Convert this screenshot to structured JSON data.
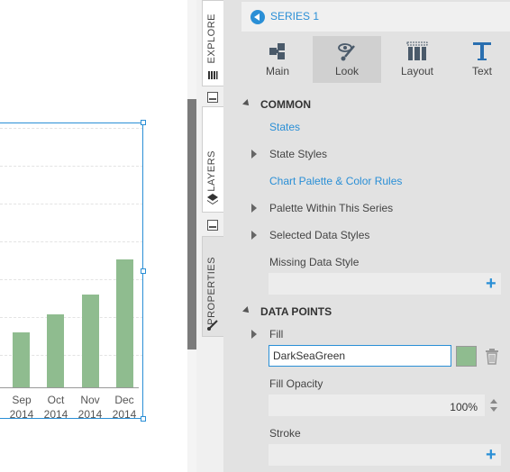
{
  "chart": {
    "bar_color": "#8FBC8F",
    "bars": [
      {
        "month": "Sep",
        "year": "2014"
      },
      {
        "month": "Oct",
        "year": "2014"
      },
      {
        "month": "Nov",
        "year": "2014"
      },
      {
        "month": "Dec",
        "year": "2014"
      }
    ]
  },
  "vertical_tabs": [
    {
      "label": "EXPLORE",
      "icon": "bar-chart-icon"
    },
    {
      "label": "LAYERS",
      "icon": "layers-icon"
    },
    {
      "label": "PROPERTIES",
      "icon": "brush-icon",
      "active": true
    }
  ],
  "panel": {
    "header": {
      "title": "SERIES 1"
    },
    "tabs": [
      {
        "label": "Main",
        "icon": "puzzle-icon"
      },
      {
        "label": "Look",
        "icon": "eye-brush-icon",
        "active": true
      },
      {
        "label": "Layout",
        "icon": "layout-icon"
      },
      {
        "label": "Text",
        "icon": "text-t-icon"
      }
    ],
    "common": {
      "title": "COMMON",
      "states": "States",
      "state_styles": "State Styles",
      "chart_palette": "Chart Palette & Color Rules",
      "palette_within": "Palette Within This Series",
      "selected_styles": "Selected Data Styles",
      "missing_style": "Missing Data Style"
    },
    "data_points": {
      "title": "DATA POINTS",
      "fill_label": "Fill",
      "fill_value": "DarkSeaGreen",
      "fill_color": "#8FBC8F",
      "opacity_label": "Fill Opacity",
      "opacity_value": "100%",
      "stroke_label": "Stroke"
    },
    "accent": "#2A8FD6"
  }
}
